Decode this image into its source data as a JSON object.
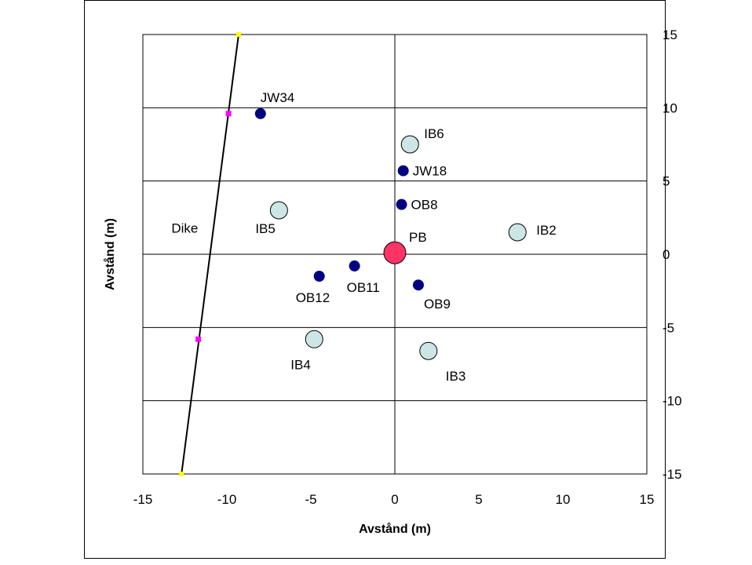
{
  "chart_data": {
    "type": "scatter",
    "title": "",
    "xlabel": "Avstånd (m)",
    "ylabel": "Avstånd (m)",
    "xlim": [
      -15,
      15
    ],
    "ylim": [
      -15,
      15
    ],
    "x_ticks": [
      "-15",
      "-10",
      "-5",
      "0",
      "5",
      "10",
      "15"
    ],
    "y_ticks": [
      "15",
      "10",
      "5",
      "0",
      "-5",
      "-10",
      "-15"
    ],
    "grid": "horizontal",
    "colors": {
      "observation": "#000080",
      "injection": "#cce6e6",
      "pumping": "#ff3366",
      "dike_line": "#000000",
      "dike_end": "#ffff00",
      "dike_mid": "#ff00ff"
    },
    "series": [
      {
        "kind": "observation",
        "points": [
          {
            "name": "JW34",
            "x": -8.0,
            "y": 9.6
          },
          {
            "name": "JW18",
            "x": 0.5,
            "y": 5.7
          },
          {
            "name": "OB8",
            "x": 0.4,
            "y": 3.4
          },
          {
            "name": "OB11",
            "x": -2.4,
            "y": -0.8
          },
          {
            "name": "OB12",
            "x": -4.5,
            "y": -1.5
          },
          {
            "name": "OB9",
            "x": 1.4,
            "y": -2.1
          },
          {
            "name": "",
            "x": 1.1,
            "y": 7.6
          },
          {
            "name": "",
            "x": 7.4,
            "y": 1.6
          }
        ]
      },
      {
        "kind": "injection",
        "points": [
          {
            "name": "IB6",
            "x": 0.9,
            "y": 7.5
          },
          {
            "name": "IB2",
            "x": 7.3,
            "y": 1.5
          },
          {
            "name": "IB5",
            "x": -6.9,
            "y": 3.0
          },
          {
            "name": "IB4",
            "x": -4.8,
            "y": -5.8
          },
          {
            "name": "IB3",
            "x": 2.0,
            "y": -6.6
          }
        ]
      },
      {
        "kind": "pumping",
        "points": [
          {
            "name": "PB",
            "x": 0.0,
            "y": 0.1
          }
        ]
      },
      {
        "kind": "dike",
        "label": "Dike",
        "label_at": {
          "x": -13.3,
          "y": 1.8
        },
        "line": [
          {
            "x": -9.3,
            "y": 15
          },
          {
            "x": -12.7,
            "y": -15
          }
        ],
        "markers": [
          {
            "x": -9.3,
            "y": 15,
            "kind": "end"
          },
          {
            "x": -9.9,
            "y": 9.6,
            "kind": "mid"
          },
          {
            "x": -11.7,
            "y": -5.8,
            "kind": "mid"
          },
          {
            "x": -12.7,
            "y": -15,
            "kind": "end"
          }
        ]
      }
    ]
  }
}
